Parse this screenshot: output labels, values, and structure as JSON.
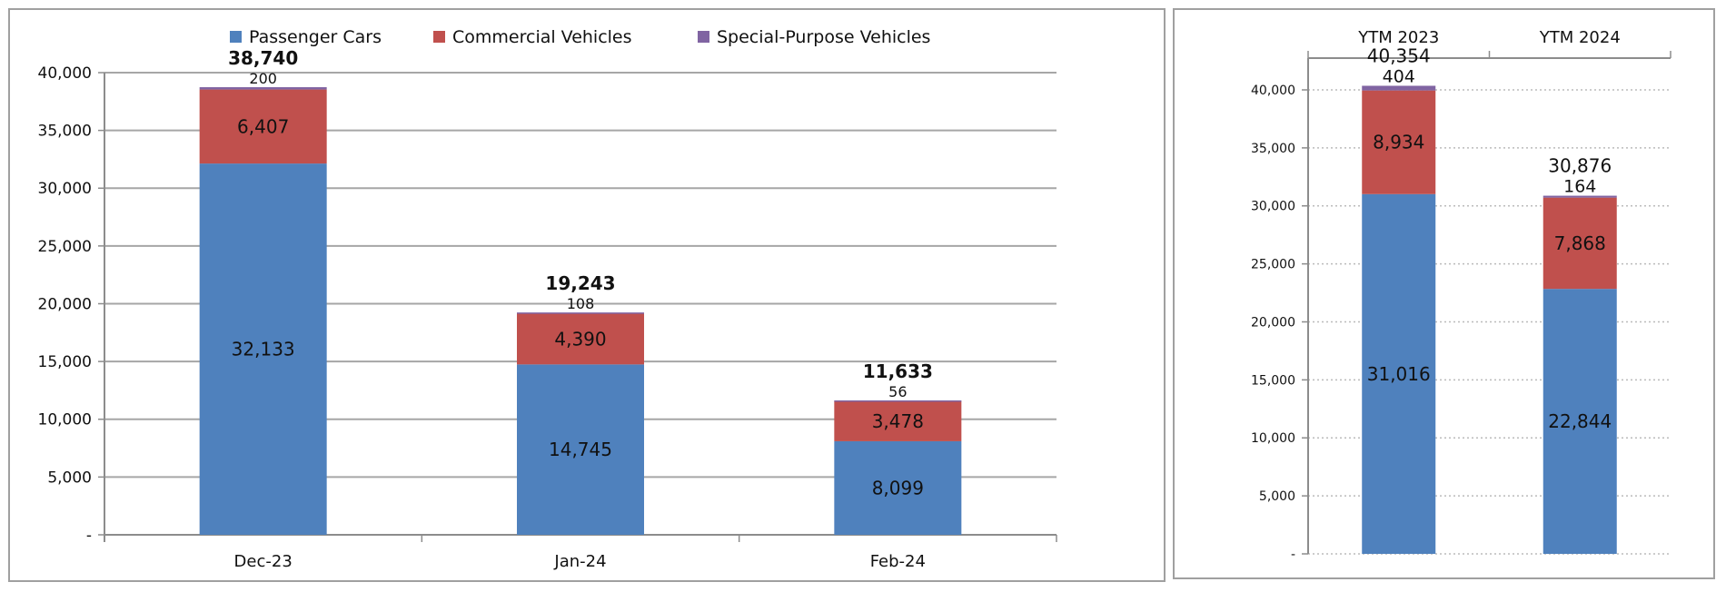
{
  "colors": {
    "passenger": "#4f81bd",
    "commercial": "#c0504d",
    "special": "#8064a2",
    "grid": "#a6a6a6",
    "axis": "#8c8c8c"
  },
  "chart_data": [
    {
      "type": "bar",
      "stacked": true,
      "title": "",
      "xlabel": "",
      "ylabel": "",
      "ylim": [
        0,
        40000
      ],
      "yticks": [
        0,
        5000,
        10000,
        15000,
        20000,
        25000,
        30000,
        35000,
        40000
      ],
      "ytick_labels": [
        "-",
        "5,000",
        "10,000",
        "15,000",
        "20,000",
        "25,000",
        "30,000",
        "35,000",
        "40,000"
      ],
      "grid": true,
      "legend_position": "top",
      "categories": [
        "Dec-23",
        "Jan-24",
        "Feb-24"
      ],
      "series": [
        {
          "name": "Passenger Cars",
          "values": [
            32133,
            14745,
            8099
          ],
          "labels": [
            "32,133",
            "14,745",
            "8,099"
          ]
        },
        {
          "name": "Commercial Vehicles",
          "values": [
            6407,
            4390,
            3478
          ],
          "labels": [
            "6,407",
            "4,390",
            "3,478"
          ]
        },
        {
          "name": "Special-Purpose Vehicles",
          "values": [
            200,
            108,
            56
          ],
          "labels": [
            "200",
            "108",
            "56"
          ]
        }
      ],
      "totals": [
        38740,
        19243,
        11633
      ],
      "total_labels": [
        "38,740",
        "19,243",
        "11,633"
      ]
    },
    {
      "type": "bar",
      "stacked": true,
      "title": "",
      "xlabel": "",
      "ylabel": "",
      "ylim": [
        0,
        40000
      ],
      "yticks": [
        0,
        5000,
        10000,
        15000,
        20000,
        25000,
        30000,
        35000,
        40000
      ],
      "ytick_labels": [
        "-",
        "5,000",
        "10,000",
        "15,000",
        "20,000",
        "25,000",
        "30,000",
        "35,000",
        "40,000"
      ],
      "grid": true,
      "category_axis_position": "top",
      "categories": [
        "YTM 2023",
        "YTM 2024"
      ],
      "series": [
        {
          "name": "Passenger Cars",
          "values": [
            31016,
            22844
          ],
          "labels": [
            "31,016",
            "22,844"
          ]
        },
        {
          "name": "Commercial Vehicles",
          "values": [
            8934,
            7868
          ],
          "labels": [
            "8,934",
            "7,868"
          ]
        },
        {
          "name": "Special-Purpose Vehicles",
          "values": [
            404,
            164
          ],
          "labels": [
            "404",
            "164"
          ]
        }
      ],
      "totals": [
        40354,
        30876
      ],
      "total_labels": [
        "40,354",
        "30,876"
      ]
    }
  ]
}
